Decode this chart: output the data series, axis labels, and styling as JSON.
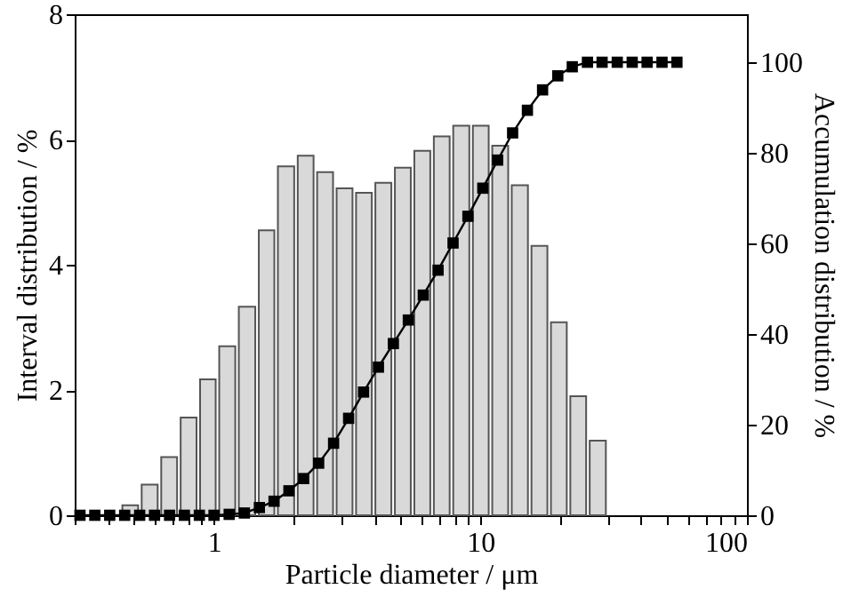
{
  "chart_data": {
    "type": "histogram",
    "xlabel": "Particle diameter / μm",
    "ylabel": "Interval distribution / %",
    "y2label": "Accumulation distribution / %",
    "log": "x",
    "grid": false,
    "marker": "square",
    "line_style": "solid",
    "xlim": [
      0.3,
      100
    ],
    "xticks": [
      {
        "value": 0.3,
        "label": null
      },
      {
        "value": 0.4,
        "label": null
      },
      {
        "value": 0.5,
        "label": null
      },
      {
        "value": 0.6,
        "label": null
      },
      {
        "value": 0.7,
        "label": null
      },
      {
        "value": 0.8,
        "label": null
      },
      {
        "value": 0.9,
        "label": null
      },
      1,
      {
        "value": 2,
        "label": null
      },
      {
        "value": 3,
        "label": null
      },
      {
        "value": 4,
        "label": null
      },
      {
        "value": 5,
        "label": null
      },
      {
        "value": 6,
        "label": null
      },
      {
        "value": 7,
        "label": null
      },
      {
        "value": 8,
        "label": null
      },
      {
        "value": 9,
        "label": null
      },
      10,
      {
        "value": 20,
        "label": null
      },
      {
        "value": 30,
        "label": null
      },
      {
        "value": 40,
        "label": null
      },
      {
        "value": 50,
        "label": null
      },
      {
        "value": 60,
        "label": null
      },
      {
        "value": 70,
        "label": null
      },
      {
        "value": 80,
        "label": null
      },
      {
        "value": 90,
        "label": null
      },
      100
    ],
    "ylim": [
      0,
      8
    ],
    "yticks": [
      0,
      2,
      4,
      6,
      8
    ],
    "y2lim": [
      0,
      110.6
    ],
    "y2ticks": [
      0,
      20,
      40,
      60,
      80,
      100
    ],
    "series": [
      {
        "color": "#d9d9d9",
        "bins": [
          0.446,
          0.527,
          0.624,
          0.738,
          0.873,
          1.03,
          1.22,
          1.45,
          1.71,
          2.03,
          2.4,
          2.84,
          3.36,
          3.97,
          4.7,
          5.56,
          6.58,
          7.78,
          9.22,
          10.9,
          12.9,
          15.3,
          18.1,
          21.4,
          25.3,
          30.0
        ],
        "values": [
          0.16,
          0.49,
          0.93,
          1.56,
          2.17,
          2.7,
          3.33,
          4.55,
          5.57,
          5.74,
          5.48,
          5.22,
          5.15,
          5.31,
          5.55,
          5.82,
          6.05,
          6.22,
          6.22,
          5.9,
          5.27,
          4.3,
          3.08,
          1.9,
          1.19
        ]
      },
      {
        "type": "line",
        "axis": "y2",
        "color": "#000000",
        "x": [
          0.314,
          0.357,
          0.406,
          0.462,
          0.526,
          0.598,
          0.681,
          0.774,
          0.881,
          1.0,
          1.14,
          1.3,
          1.48,
          1.68,
          1.91,
          2.17,
          2.47,
          2.81,
          3.2,
          3.64,
          4.14,
          4.71,
          5.36,
          6.1,
          6.93,
          7.89,
          8.97,
          10.2,
          11.6,
          13.2,
          15.0,
          17.1,
          19.5,
          22.1,
          25.2,
          28.6,
          32.6,
          37.1,
          42.2,
          48.0,
          54.6
        ],
        "values": [
          0,
          0,
          0,
          0,
          0,
          0,
          0,
          0,
          0,
          0,
          0.2,
          0.5,
          1.7,
          3.1,
          5.4,
          8.1,
          11.5,
          15.9,
          21.4,
          27.2,
          32.7,
          37.9,
          43.1,
          48.6,
          54.1,
          60.1,
          66.0,
          72.2,
          78.4,
          84.4,
          89.4,
          93.9,
          97.0,
          99.0,
          100,
          100,
          100,
          100,
          100,
          100,
          100
        ]
      }
    ]
  }
}
